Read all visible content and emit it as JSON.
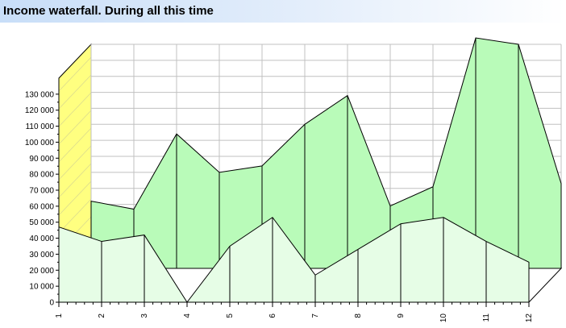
{
  "header": {
    "title": "Income waterfall. During all this time"
  },
  "colors": {
    "back_fill": "#b9fbb9",
    "front_fill": "#e6fde6",
    "wall_fill": "#ffff80",
    "grid": "#c0c0c0",
    "line": "#000000"
  },
  "chart_data": {
    "type": "area",
    "title": "Income waterfall. During all this time",
    "xlabel": "",
    "ylabel": "",
    "categories": [
      "1",
      "2",
      "3",
      "4",
      "5",
      "6",
      "7",
      "8",
      "9",
      "10",
      "11",
      "12"
    ],
    "y_ticks": [
      "0",
      "10 000",
      "20 000",
      "30 000",
      "40 000",
      "50 000",
      "60 000",
      "70 000",
      "80 000",
      "90 000",
      "100 000",
      "110 000",
      "120 000",
      "130 000"
    ],
    "ylim": [
      0,
      140000
    ],
    "grid": true,
    "view": "3d",
    "series": [
      {
        "values": [
          47000,
          38000,
          42000,
          0,
          35000,
          53000,
          17000,
          33000,
          49000,
          53000,
          38000,
          25000
        ]
      },
      {
        "values": [
          42000,
          37000,
          84000,
          60000,
          64000,
          90000,
          108000,
          39000,
          51000,
          144000,
          140000,
          53000
        ]
      }
    ]
  }
}
